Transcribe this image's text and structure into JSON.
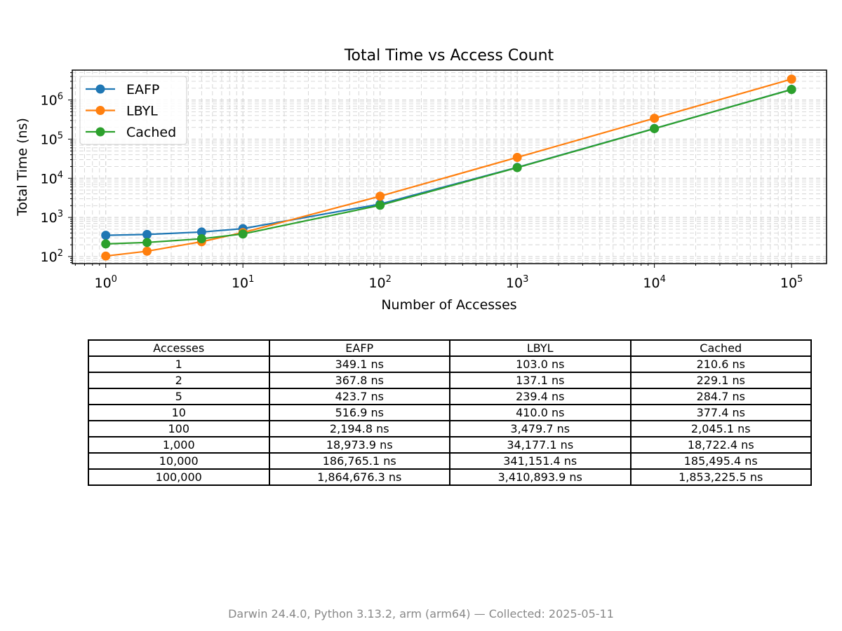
{
  "chart_data": {
    "type": "line",
    "title": "Total Time vs Access Count",
    "xlabel": "Number of Accesses",
    "ylabel": "Total Time (ns)",
    "xscale": "log",
    "yscale": "log",
    "xlim": [
      0.57,
      180000
    ],
    "ylim": [
      66,
      5800000
    ],
    "x_tick_labels": [
      "10^0",
      "10^1",
      "10^2",
      "10^3",
      "10^4",
      "10^5"
    ],
    "y_tick_labels": [
      "10^2",
      "10^3",
      "10^4",
      "10^5",
      "10^6"
    ],
    "grid": true,
    "legend_position": "upper-left",
    "x": [
      1,
      2,
      5,
      10,
      100,
      1000,
      10000,
      100000
    ],
    "series": [
      {
        "name": "EAFP",
        "color": "#1f77b4",
        "values": [
          349.1,
          367.8,
          423.7,
          516.9,
          2194.8,
          18973.9,
          186765.1,
          1864676.3
        ]
      },
      {
        "name": "LBYL",
        "color": "#ff7f0e",
        "values": [
          103.0,
          137.1,
          239.4,
          410.0,
          3479.7,
          34177.1,
          341151.4,
          3410893.9
        ]
      },
      {
        "name": "Cached",
        "color": "#2ca02c",
        "values": [
          210.6,
          229.1,
          284.7,
          377.4,
          2045.1,
          18722.4,
          185495.4,
          1853225.5
        ]
      }
    ]
  },
  "table": {
    "headers": [
      "Accesses",
      "EAFP",
      "LBYL",
      "Cached"
    ],
    "rows": [
      [
        "1",
        "349.1 ns",
        "103.0 ns",
        "210.6 ns"
      ],
      [
        "2",
        "367.8 ns",
        "137.1 ns",
        "229.1 ns"
      ],
      [
        "5",
        "423.7 ns",
        "239.4 ns",
        "284.7 ns"
      ],
      [
        "10",
        "516.9 ns",
        "410.0 ns",
        "377.4 ns"
      ],
      [
        "100",
        "2,194.8 ns",
        "3,479.7 ns",
        "2,045.1 ns"
      ],
      [
        "1,000",
        "18,973.9 ns",
        "34,177.1 ns",
        "18,722.4 ns"
      ],
      [
        "10,000",
        "186,765.1 ns",
        "341,151.4 ns",
        "185,495.4 ns"
      ],
      [
        "100,000",
        "1,864,676.3 ns",
        "3,410,893.9 ns",
        "1,853,225.5 ns"
      ]
    ]
  },
  "footer": "Darwin 24.4.0, Python 3.13.2, arm (arm64) — Collected: 2025-05-11"
}
